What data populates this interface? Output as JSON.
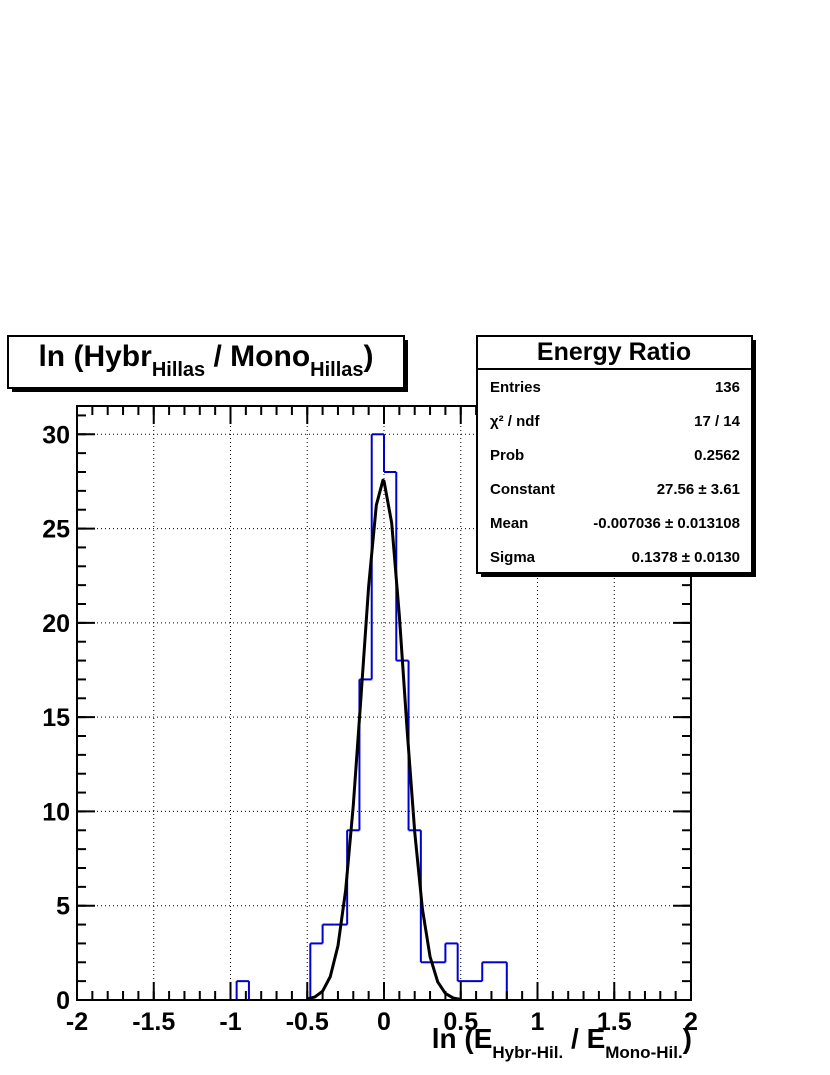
{
  "chart_data": {
    "type": "histogram",
    "title_parts": [
      "ln (Hybr",
      "Hillas",
      " / Mono",
      "Hillas",
      ")"
    ],
    "x_label_parts": [
      "ln (E",
      "Hybr-Hil.",
      " / E",
      "Mono-Hil.",
      ")"
    ],
    "bins": [
      -2.0,
      -1.92,
      -1.84,
      -1.76,
      -1.68,
      -1.6,
      -1.52,
      -1.44,
      -1.36,
      -1.28,
      -1.2,
      -1.12,
      -1.04,
      -0.96,
      -0.88,
      -0.8,
      -0.72,
      -0.64,
      -0.56,
      -0.48,
      -0.4,
      -0.32,
      -0.24,
      -0.16,
      -0.08,
      0.0,
      0.08,
      0.16,
      0.24,
      0.32,
      0.4,
      0.48,
      0.56,
      0.64,
      0.72,
      0.8,
      0.88,
      0.96,
      1.04,
      1.12,
      1.2,
      1.28,
      1.36,
      1.44,
      1.52,
      1.6,
      1.68,
      1.76,
      1.84,
      1.92,
      2.0
    ],
    "counts": [
      0,
      0,
      0,
      0,
      0,
      0,
      0,
      0,
      0,
      0,
      0,
      0,
      0,
      1,
      0,
      0,
      0,
      0,
      0,
      3,
      4,
      4,
      9,
      17,
      30,
      28,
      18,
      9,
      2,
      2,
      3,
      1,
      1,
      2,
      2,
      0,
      0,
      0,
      0,
      0,
      0,
      0,
      0,
      0,
      0,
      0,
      0,
      0,
      0,
      0
    ],
    "color": "#0000cc",
    "fit": {
      "color": "#000000",
      "x": [
        -0.5,
        -0.45,
        -0.4,
        -0.35,
        -0.3,
        -0.25,
        -0.2,
        -0.15,
        -0.1,
        -0.05,
        -0.007,
        0,
        0.05,
        0.1,
        0.15,
        0.2,
        0.25,
        0.3,
        0.35,
        0.4,
        0.45,
        0.5
      ],
      "values": [
        0.05,
        0.16,
        0.47,
        1.24,
        2.87,
        5.81,
        10.33,
        16.07,
        21.94,
        26.24,
        27.56,
        27.52,
        25.3,
        20.38,
        14.39,
        8.92,
        4.84,
        2.3,
        0.96,
        0.35,
        0.11,
        0.03
      ]
    },
    "xlim": [
      -2,
      2
    ],
    "xticks": [
      -2,
      -1.5,
      -1,
      -0.5,
      0,
      0.5,
      1,
      1.5,
      2
    ],
    "ylim": [
      0,
      31.5
    ],
    "yticks": [
      0,
      5,
      10,
      15,
      20,
      25,
      30
    ],
    "grid": true,
    "stats": {
      "title": "Energy Ratio",
      "rows": [
        [
          "Entries",
          "136"
        ],
        [
          "χ² / ndf",
          "17 / 14"
        ],
        [
          "Prob",
          "0.2562"
        ],
        [
          "Constant",
          "27.56 ± 3.61"
        ],
        [
          "Mean",
          "-0.007036 ± 0.013108"
        ],
        [
          "Sigma",
          "0.1378 ± 0.0130"
        ]
      ]
    }
  }
}
